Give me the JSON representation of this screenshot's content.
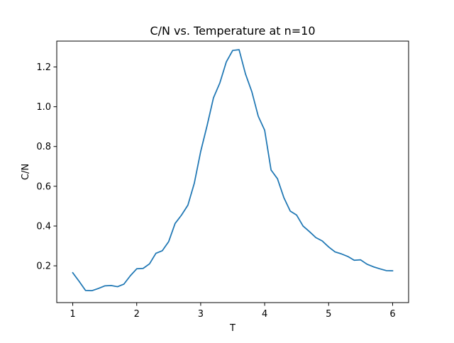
{
  "chart_data": {
    "type": "line",
    "title": "C/N vs. Temperature at n=10",
    "xlabel": "T",
    "ylabel": "C/N",
    "xlim": [
      0.75,
      6.25
    ],
    "ylim": [
      0.015,
      1.33
    ],
    "xticks": [
      1,
      2,
      3,
      4,
      5,
      6
    ],
    "yticks": [
      0.2,
      0.4,
      0.6,
      0.8,
      1.0,
      1.2
    ],
    "xtick_labels": [
      "1",
      "2",
      "3",
      "4",
      "5",
      "6"
    ],
    "ytick_labels": [
      "0.2",
      "0.4",
      "0.6",
      "0.8",
      "1.0",
      "1.2"
    ],
    "grid": false,
    "legend": "none",
    "series": [
      {
        "color": "#1f77b4",
        "x": [
          1.0,
          1.1,
          1.2,
          1.3,
          1.4,
          1.5,
          1.6,
          1.7,
          1.8,
          1.9,
          2.0,
          2.1,
          2.2,
          2.3,
          2.4,
          2.5,
          2.6,
          2.7,
          2.8,
          2.9,
          3.0,
          3.1,
          3.2,
          3.3,
          3.4,
          3.5,
          3.6,
          3.7,
          3.8,
          3.9,
          4.0,
          4.1,
          4.2,
          4.3,
          4.4,
          4.5,
          4.6,
          4.7,
          4.8,
          4.9,
          5.0,
          5.1,
          5.2,
          5.3,
          5.4,
          5.5,
          5.6,
          5.7,
          5.8,
          5.9,
          6.0
        ],
        "y": [
          0.165,
          0.122,
          0.076,
          0.075,
          0.086,
          0.099,
          0.101,
          0.095,
          0.108,
          0.15,
          0.185,
          0.187,
          0.21,
          0.263,
          0.276,
          0.322,
          0.413,
          0.455,
          0.505,
          0.615,
          0.775,
          0.905,
          1.045,
          1.12,
          1.225,
          1.283,
          1.287,
          1.165,
          1.075,
          0.952,
          0.882,
          0.682,
          0.638,
          0.543,
          0.475,
          0.455,
          0.4,
          0.372,
          0.342,
          0.325,
          0.295,
          0.27,
          0.26,
          0.247,
          0.228,
          0.23,
          0.208,
          0.195,
          0.185,
          0.176,
          0.175
        ]
      }
    ]
  }
}
